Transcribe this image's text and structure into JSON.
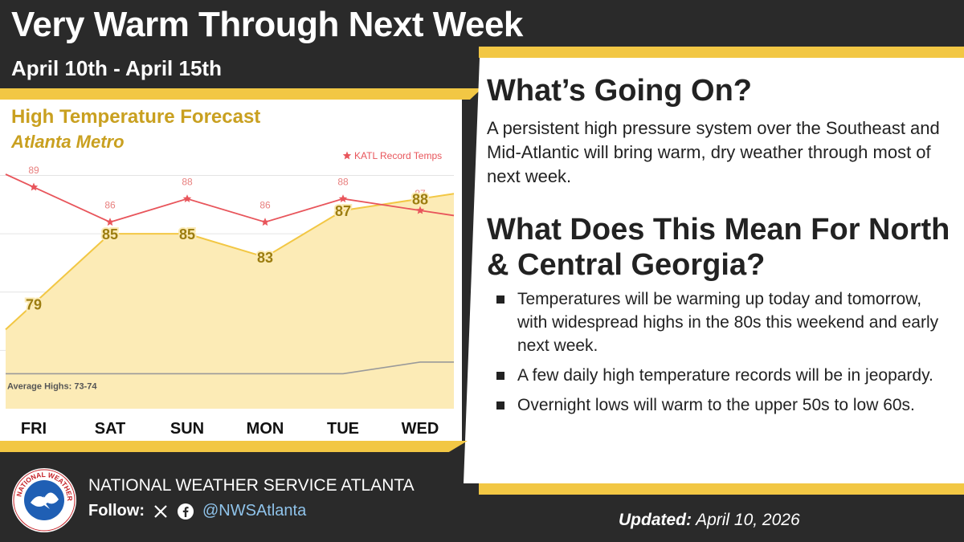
{
  "header": {
    "title": "Very Warm Through Next Week",
    "dates": "April 10th - April 15th"
  },
  "chart_panel": {
    "title": "High Temperature Forecast",
    "subtitle": "Atlanta Metro"
  },
  "chart_data": {
    "type": "area",
    "categories": [
      "FRI",
      "SAT",
      "SUN",
      "MON",
      "TUE",
      "WED"
    ],
    "series": [
      {
        "name": "",
        "values": [
          79,
          85,
          85,
          83,
          87,
          88
        ],
        "color": "#f2c744"
      },
      {
        "name": "KATL Record Temps",
        "values": [
          89,
          86,
          88,
          86,
          88,
          87
        ],
        "color": "#e8555b"
      }
    ],
    "average_label": "Average Highs: 73-74",
    "average_line": [
      73,
      73,
      73,
      73,
      73,
      74
    ],
    "ylim": [
      70,
      91
    ],
    "grid": true,
    "legend": "top-right"
  },
  "going_on": {
    "heading": "What’s Going On?",
    "text": "A persistent high pressure system over the Southeast and Mid-Atlantic will bring warm, dry weather through most of next week."
  },
  "meaning": {
    "heading": "What Does This Mean For North & Central Georgia?",
    "bullets": [
      "Temperatures will be warming up today and tomorrow, with widespread highs in the 80s this weekend and early next week.",
      "A few daily high temperature records will be in jeopardy.",
      "Overnight lows will warm to the upper 50s to low 60s."
    ]
  },
  "footer": {
    "org": "NATIONAL WEATHER SERVICE ATLANTA",
    "follow_label": "Follow:",
    "handle": "@NWSAtlanta",
    "updated_label": "Updated:",
    "updated_date": "April 10, 2026",
    "logo_text": "NATIONAL WEATHER SERVICE"
  },
  "colors": {
    "accent": "#f2c744",
    "record": "#e8555b",
    "forecast_text": "#9c7d10",
    "background": "#2a2a2a"
  },
  "icons": [
    "x-icon",
    "facebook-icon",
    "nws-logo"
  ]
}
